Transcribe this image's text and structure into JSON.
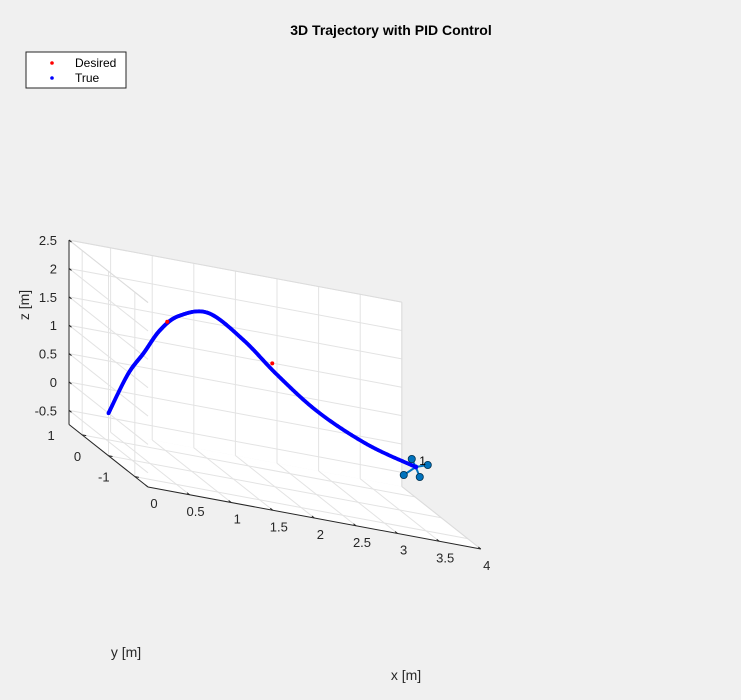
{
  "chart_data": {
    "type": "scatter",
    "projection": "3d",
    "title": "3D Trajectory with PID Control",
    "xlabel": "x [m]",
    "ylabel": "y [m]",
    "zlabel": "z [m]",
    "xlim": [
      0,
      4
    ],
    "ylim": [
      -1.5,
      1.5
    ],
    "zlim": [
      -0.75,
      2.5
    ],
    "x_ticks": [
      "0",
      "0.5",
      "1",
      "1.5",
      "2",
      "2.5",
      "3",
      "3.5",
      "4"
    ],
    "y_ticks": [
      "-1",
      "0",
      "1"
    ],
    "z_ticks": [
      "-0.5",
      "0",
      "0.5",
      "1",
      "1.5",
      "2",
      "2.5"
    ],
    "grid": true,
    "legend": {
      "position": "top-left",
      "entries": [
        {
          "label": "Desired",
          "color": "#ff0000"
        },
        {
          "label": "True",
          "color": "#0000ff"
        }
      ]
    },
    "series": [
      {
        "name": "Desired",
        "color": "#ff0000",
        "visible_points": [
          {
            "x": 0.88,
            "y": 0.55,
            "z": 1.65
          },
          {
            "x": 2.12,
            "y": 0.48,
            "z": 1.28
          }
        ]
      },
      {
        "name": "True",
        "color": "#0000ff",
        "waypoints": [
          {
            "x": 0.0,
            "y": 0.0,
            "z": 0.0
          },
          {
            "x": 0.33,
            "y": 0.31,
            "z": 0.66
          },
          {
            "x": 0.57,
            "y": 0.46,
            "z": 1.05
          },
          {
            "x": 0.79,
            "y": 0.54,
            "z": 1.48
          },
          {
            "x": 1.02,
            "y": 0.55,
            "z": 1.79
          },
          {
            "x": 1.36,
            "y": 0.51,
            "z": 1.95
          },
          {
            "x": 1.76,
            "y": 0.44,
            "z": 1.61
          },
          {
            "x": 2.15,
            "y": 0.38,
            "z": 1.12
          },
          {
            "x": 2.62,
            "y": 0.31,
            "z": 0.62
          },
          {
            "x": 3.19,
            "y": 0.24,
            "z": 0.23
          },
          {
            "x": 3.75,
            "y": 0.18,
            "z": 0.01
          }
        ]
      }
    ],
    "annotation": {
      "text": "1",
      "x": 3.78,
      "y": 0.18,
      "z": 0.02
    },
    "quadrotor_marker": {
      "x": 3.75,
      "y": 0.18,
      "z": 0.01,
      "color": "#0072bd"
    }
  }
}
